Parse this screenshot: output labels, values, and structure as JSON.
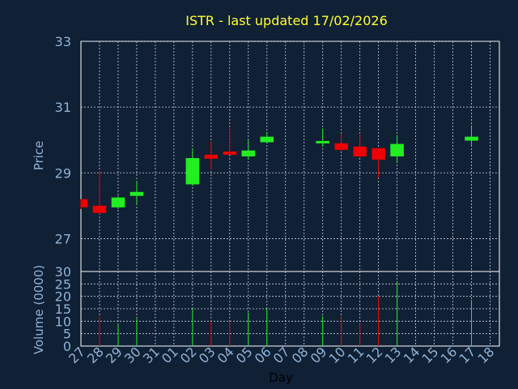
{
  "chart_data": [
    {
      "type": "candlestick",
      "title": "ISTR - last updated 17/02/2026",
      "ylabel": "Price",
      "ylim": [
        26,
        33
      ],
      "yticks": [
        "27",
        "29",
        "31",
        "33"
      ],
      "grid": true,
      "categories": [
        "27",
        "28",
        "29",
        "30",
        "31",
        "01",
        "02",
        "03",
        "04",
        "05",
        "06",
        "07",
        "08",
        "09",
        "10",
        "11",
        "12",
        "13",
        "14",
        "15",
        "16",
        "17",
        "18"
      ],
      "candles": [
        {
          "day": "27",
          "open": 28.2,
          "high": 28.2,
          "low": 27.9,
          "close": 27.95,
          "dir": "down"
        },
        {
          "day": "28",
          "open": 28.0,
          "high": 29.05,
          "low": 27.75,
          "close": 27.78,
          "dir": "down"
        },
        {
          "day": "29",
          "open": 27.95,
          "high": 28.3,
          "low": 27.9,
          "close": 28.25,
          "dir": "up"
        },
        {
          "day": "30",
          "open": 28.3,
          "high": 28.75,
          "low": 28.05,
          "close": 28.42,
          "dir": "up"
        },
        {
          "day": "02",
          "open": 28.65,
          "high": 29.75,
          "low": 28.6,
          "close": 29.45,
          "dir": "up"
        },
        {
          "day": "03",
          "open": 29.55,
          "high": 29.95,
          "low": 29.1,
          "close": 29.43,
          "dir": "down"
        },
        {
          "day": "04",
          "open": 29.65,
          "high": 30.4,
          "low": 29.55,
          "close": 29.55,
          "dir": "down"
        },
        {
          "day": "05",
          "open": 29.5,
          "high": 30.0,
          "low": 29.4,
          "close": 29.68,
          "dir": "up"
        },
        {
          "day": "06",
          "open": 29.93,
          "high": 30.25,
          "low": 29.9,
          "close": 30.1,
          "dir": "up"
        },
        {
          "day": "09",
          "open": 29.93,
          "high": 30.35,
          "low": 29.8,
          "close": 29.97,
          "dir": "up"
        },
        {
          "day": "10",
          "open": 29.9,
          "high": 30.2,
          "low": 29.65,
          "close": 29.7,
          "dir": "down"
        },
        {
          "day": "11",
          "open": 29.8,
          "high": 30.2,
          "low": 29.45,
          "close": 29.5,
          "dir": "down"
        },
        {
          "day": "12",
          "open": 29.75,
          "high": 29.75,
          "low": 28.85,
          "close": 29.4,
          "dir": "down"
        },
        {
          "day": "13",
          "open": 29.5,
          "high": 30.15,
          "low": 29.3,
          "close": 29.88,
          "dir": "up"
        },
        {
          "day": "17",
          "open": 29.98,
          "high": 30.45,
          "low": 29.85,
          "close": 30.1,
          "dir": "up"
        }
      ]
    },
    {
      "type": "bar",
      "ylabel": "Volume (0000)",
      "xlabel": "Day",
      "ylim": [
        0,
        30
      ],
      "yticks": [
        "0",
        "5",
        "10",
        "15",
        "20",
        "25",
        "30"
      ],
      "categories": [
        "27",
        "28",
        "29",
        "30",
        "31",
        "01",
        "02",
        "03",
        "04",
        "05",
        "06",
        "07",
        "08",
        "09",
        "10",
        "11",
        "12",
        "13",
        "14",
        "15",
        "16",
        "17",
        "18"
      ],
      "volumes": [
        {
          "day": "28",
          "value": 12,
          "dir": "down"
        },
        {
          "day": "29",
          "value": 9,
          "dir": "up"
        },
        {
          "day": "30",
          "value": 11,
          "dir": "up"
        },
        {
          "day": "02",
          "value": 15,
          "dir": "up"
        },
        {
          "day": "03",
          "value": 10,
          "dir": "down"
        },
        {
          "day": "04",
          "value": 10,
          "dir": "down"
        },
        {
          "day": "05",
          "value": 13.5,
          "dir": "up"
        },
        {
          "day": "06",
          "value": 15,
          "dir": "up"
        },
        {
          "day": "09",
          "value": 12,
          "dir": "up"
        },
        {
          "day": "10",
          "value": 12,
          "dir": "down"
        },
        {
          "day": "11",
          "value": 9,
          "dir": "down"
        },
        {
          "day": "12",
          "value": 20,
          "dir": "down"
        },
        {
          "day": "13",
          "value": 26,
          "dir": "up"
        },
        {
          "day": "17",
          "value": 18.5,
          "dir": "up"
        }
      ]
    }
  ],
  "colors": {
    "background": "#102035",
    "axis": "#8fb3d6",
    "grid": "#c8d4e0",
    "title": "#ffff33",
    "up": "#22ee22",
    "down": "#ee0000",
    "panel_border": "#ffffff"
  }
}
